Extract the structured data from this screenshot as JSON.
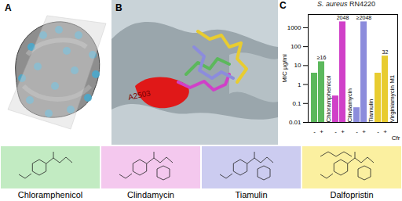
{
  "panel_labels": [
    "A",
    "B",
    "C"
  ],
  "panel_b": {
    "annotation": "A2503"
  },
  "chart_data": {
    "type": "bar",
    "title": "S. aureus RN4220",
    "y_label": "MIC µg/ml",
    "x_label": "Cfr",
    "categories": [
      "Chloramphenicol",
      "Clindamycin",
      "Tiamulin",
      "Virginiamycin M1"
    ],
    "colors": [
      "#5cb85c",
      "#d040c8",
      "#8c8cdc",
      "#e8cc30"
    ],
    "series": [
      {
        "name": "-",
        "values": [
          4,
          0.25,
          0.06,
          4
        ]
      },
      {
        "name": "+",
        "values": [
          16,
          2048,
          2048,
          32
        ],
        "value_labels": [
          "≥16",
          "2048",
          "≥2048",
          "32"
        ],
        "data_labels": true
      }
    ],
    "log": "y",
    "ylim": [
      0.01,
      5000
    ],
    "yticks": [
      0.01,
      0.1,
      1,
      10,
      100,
      1000
    ],
    "grid": false
  },
  "compounds": [
    {
      "name": "Chloramphenicol",
      "color": "#c2ebc2"
    },
    {
      "name": "Clindamycin",
      "color": "#f4c8ee"
    },
    {
      "name": "Tiamulin",
      "color": "#ccccf0"
    },
    {
      "name": "Dalfopristin",
      "color": "#fbf0a0"
    }
  ]
}
